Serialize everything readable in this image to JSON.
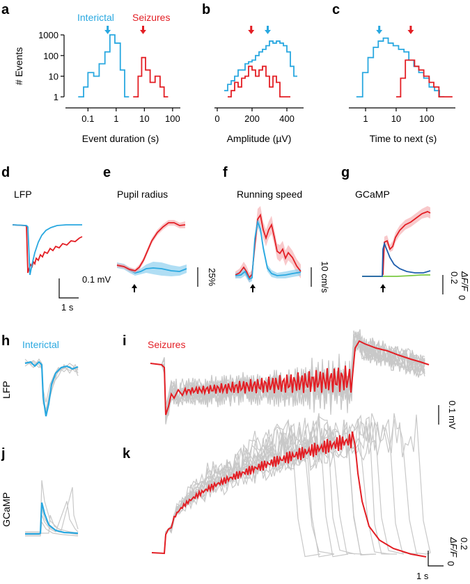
{
  "colors": {
    "interictal": "#29a8e0",
    "seizure": "#e31e24",
    "gray": "#c8c8c8",
    "shade_blue": "#8fd0ef",
    "shade_red": "#f4a5a8",
    "green": "#7ac943",
    "dark_blue": "#1f5fae"
  },
  "chart_data": [
    {
      "id": "a",
      "letter": "a",
      "type": "line",
      "xlabel": "Event duration (s)",
      "ylabel": "# Events",
      "xscale": "log",
      "yscale": "log",
      "xlim": [
        0.02,
        150
      ],
      "ylim": [
        0.8,
        3000
      ],
      "xticks": [
        {
          "v": 0.1,
          "label": "0.1"
        },
        {
          "v": 1,
          "label": "1"
        },
        {
          "v": 10,
          "label": "10"
        },
        {
          "v": 100,
          "label": "100"
        }
      ],
      "yticks": [
        {
          "v": 1,
          "label": "1"
        },
        {
          "v": 10,
          "label": "10"
        },
        {
          "v": 100,
          "label": "100"
        },
        {
          "v": 1000,
          "label": "1000"
        }
      ],
      "legend": [
        {
          "name": "Interictal",
          "color": "#29a8e0"
        },
        {
          "name": "Seizures",
          "color": "#e31e24"
        }
      ],
      "arrows": [
        {
          "series": "Interictal",
          "x": 0.5
        },
        {
          "series": "Seizures",
          "x": 9
        }
      ],
      "series": [
        {
          "name": "Interictal",
          "color": "#29a8e0",
          "x": [
            0.045,
            0.07,
            0.1,
            0.16,
            0.25,
            0.4,
            0.6,
            0.9,
            1.4,
            2.0
          ],
          "y": [
            1,
            3,
            15,
            10,
            40,
            150,
            1000,
            400,
            20,
            1
          ]
        },
        {
          "name": "Seizures",
          "color": "#e31e24",
          "x": [
            4,
            6,
            8,
            11,
            16,
            24,
            36,
            50
          ],
          "y": [
            1,
            10,
            80,
            20,
            5,
            10,
            3,
            1
          ]
        }
      ]
    },
    {
      "id": "b",
      "letter": "b",
      "type": "line",
      "xlabel": "Amplitude (µV)",
      "ylabel": "",
      "xscale": "linear",
      "yscale": "log",
      "xlim": [
        0,
        480
      ],
      "ylim": [
        0.8,
        3000
      ],
      "xticks": [
        {
          "v": 0,
          "label": "0"
        },
        {
          "v": 200,
          "label": "200"
        },
        {
          "v": 400,
          "label": "400"
        }
      ],
      "yticks": [],
      "arrows": [
        {
          "series": "Seizures",
          "x": 195
        },
        {
          "series": "Interictal",
          "x": 290
        }
      ],
      "series": [
        {
          "name": "Interictal",
          "color": "#29a8e0",
          "x": [
            40,
            60,
            80,
            100,
            120,
            140,
            160,
            180,
            200,
            220,
            240,
            260,
            280,
            300,
            320,
            340,
            360,
            380,
            400,
            420,
            440
          ],
          "y": [
            2,
            4,
            6,
            10,
            20,
            20,
            40,
            50,
            60,
            100,
            150,
            200,
            300,
            500,
            400,
            500,
            400,
            300,
            150,
            30,
            10
          ]
        },
        {
          "name": "Seizures",
          "color": "#e31e24",
          "x": [
            60,
            80,
            100,
            120,
            140,
            160,
            180,
            200,
            220,
            240,
            260,
            280,
            300,
            320,
            340,
            360,
            380,
            400
          ],
          "y": [
            1,
            2,
            5,
            3,
            8,
            10,
            30,
            20,
            10,
            20,
            30,
            10,
            3,
            10,
            5,
            1,
            1,
            1
          ]
        }
      ]
    },
    {
      "id": "c",
      "letter": "c",
      "type": "line",
      "xlabel": "Time to next (s)",
      "ylabel": "",
      "xscale": "log",
      "yscale": "log",
      "xlim": [
        0.35,
        700
      ],
      "ylim": [
        0.8,
        3000
      ],
      "xticks": [
        {
          "v": 1,
          "label": "1"
        },
        {
          "v": 10,
          "label": "10"
        },
        {
          "v": 100,
          "label": "100"
        }
      ],
      "yticks": [],
      "arrows": [
        {
          "series": "Interictal",
          "x": 2.8
        },
        {
          "series": "Seizures",
          "x": 30
        }
      ],
      "series": [
        {
          "name": "Interictal",
          "color": "#29a8e0",
          "x": [
            0.5,
            0.8,
            1.2,
            1.8,
            2.6,
            3.8,
            5.5,
            8,
            12,
            18,
            26,
            38,
            55,
            80,
            120,
            180,
            260
          ],
          "y": [
            1,
            15,
            80,
            250,
            500,
            700,
            400,
            300,
            200,
            150,
            60,
            30,
            15,
            8,
            3,
            2,
            1
          ]
        },
        {
          "name": "Seizures",
          "color": "#e31e24",
          "x": [
            10,
            14,
            20,
            28,
            40,
            55,
            80,
            120,
            170,
            250,
            360,
            500
          ],
          "y": [
            1,
            8,
            60,
            60,
            30,
            20,
            10,
            5,
            3,
            1,
            1,
            1
          ]
        }
      ]
    }
  ],
  "traces": {
    "d": {
      "letter": "d",
      "title": "LFP",
      "scalebar": {
        "y_label": "0.1 mV",
        "x_label": "1 s"
      }
    },
    "e": {
      "letter": "e",
      "title": "Pupil radius",
      "scalebar": {
        "y_label": "25%"
      }
    },
    "f": {
      "letter": "f",
      "title": "Running speed",
      "scalebar": {
        "y_label": "10 cm/s"
      }
    },
    "g": {
      "letter": "g",
      "title": "GCaMP",
      "scalebar": {
        "value": "0.2",
        "y_label": "ΔF/F",
        "subscript": "0"
      }
    },
    "h": {
      "letter": "h",
      "title": "Interictal",
      "row_label": "LFP"
    },
    "i": {
      "letter": "i",
      "title": "Seizures",
      "scalebar": {
        "y_label": "0.1 mV"
      }
    },
    "j": {
      "letter": "j",
      "row_label": "GCaMP"
    },
    "k": {
      "letter": "k",
      "scalebar": {
        "value": "0.2",
        "y_label": "ΔF/F",
        "subscript": "0",
        "x_label": "1 s"
      }
    }
  }
}
